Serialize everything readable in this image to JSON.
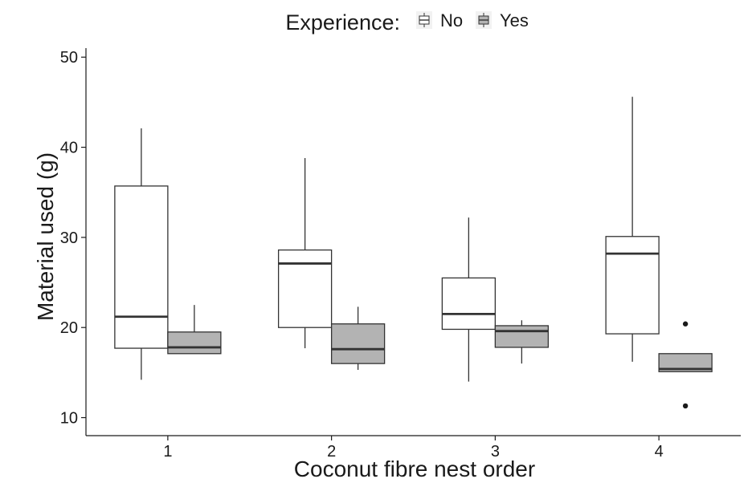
{
  "chart_data": {
    "type": "box",
    "title": "",
    "xlabel": "Coconut fibre nest order",
    "ylabel": "Material used (g)",
    "ylim": [
      8,
      51
    ],
    "yticks": [
      10,
      20,
      30,
      40,
      50
    ],
    "categories": [
      "1",
      "2",
      "3",
      "4"
    ],
    "grid": false,
    "legend": {
      "title": "Experience:",
      "position": "top",
      "entries": [
        "No",
        "Yes"
      ]
    },
    "series": [
      {
        "name": "No",
        "color": "#ffffff",
        "boxes": [
          {
            "category": "1",
            "min": 14.2,
            "q1": 17.7,
            "median": 21.2,
            "q3": 35.7,
            "max": 42.1,
            "outliers": []
          },
          {
            "category": "2",
            "min": 17.7,
            "q1": 20.0,
            "median": 27.1,
            "q3": 28.6,
            "max": 38.8,
            "outliers": []
          },
          {
            "category": "3",
            "min": 14.0,
            "q1": 19.8,
            "median": 21.5,
            "q3": 25.5,
            "max": 32.2,
            "outliers": []
          },
          {
            "category": "4",
            "min": 16.2,
            "q1": 19.3,
            "median": 28.2,
            "q3": 30.1,
            "max": 45.6,
            "outliers": []
          }
        ]
      },
      {
        "name": "Yes",
        "color": "#b3b3b3",
        "boxes": [
          {
            "category": "1",
            "min": 17.1,
            "q1": 17.1,
            "median": 17.8,
            "q3": 19.5,
            "max": 22.5,
            "outliers": []
          },
          {
            "category": "2",
            "min": 15.3,
            "q1": 16.0,
            "median": 17.6,
            "q3": 20.4,
            "max": 22.3,
            "outliers": []
          },
          {
            "category": "3",
            "min": 16.0,
            "q1": 17.8,
            "median": 19.6,
            "q3": 20.2,
            "max": 20.8,
            "outliers": []
          },
          {
            "category": "4",
            "min": 15.1,
            "q1": 15.1,
            "median": 15.4,
            "q3": 17.1,
            "max": 17.1,
            "outliers": [
              20.4,
              11.3
            ]
          }
        ]
      }
    ]
  }
}
